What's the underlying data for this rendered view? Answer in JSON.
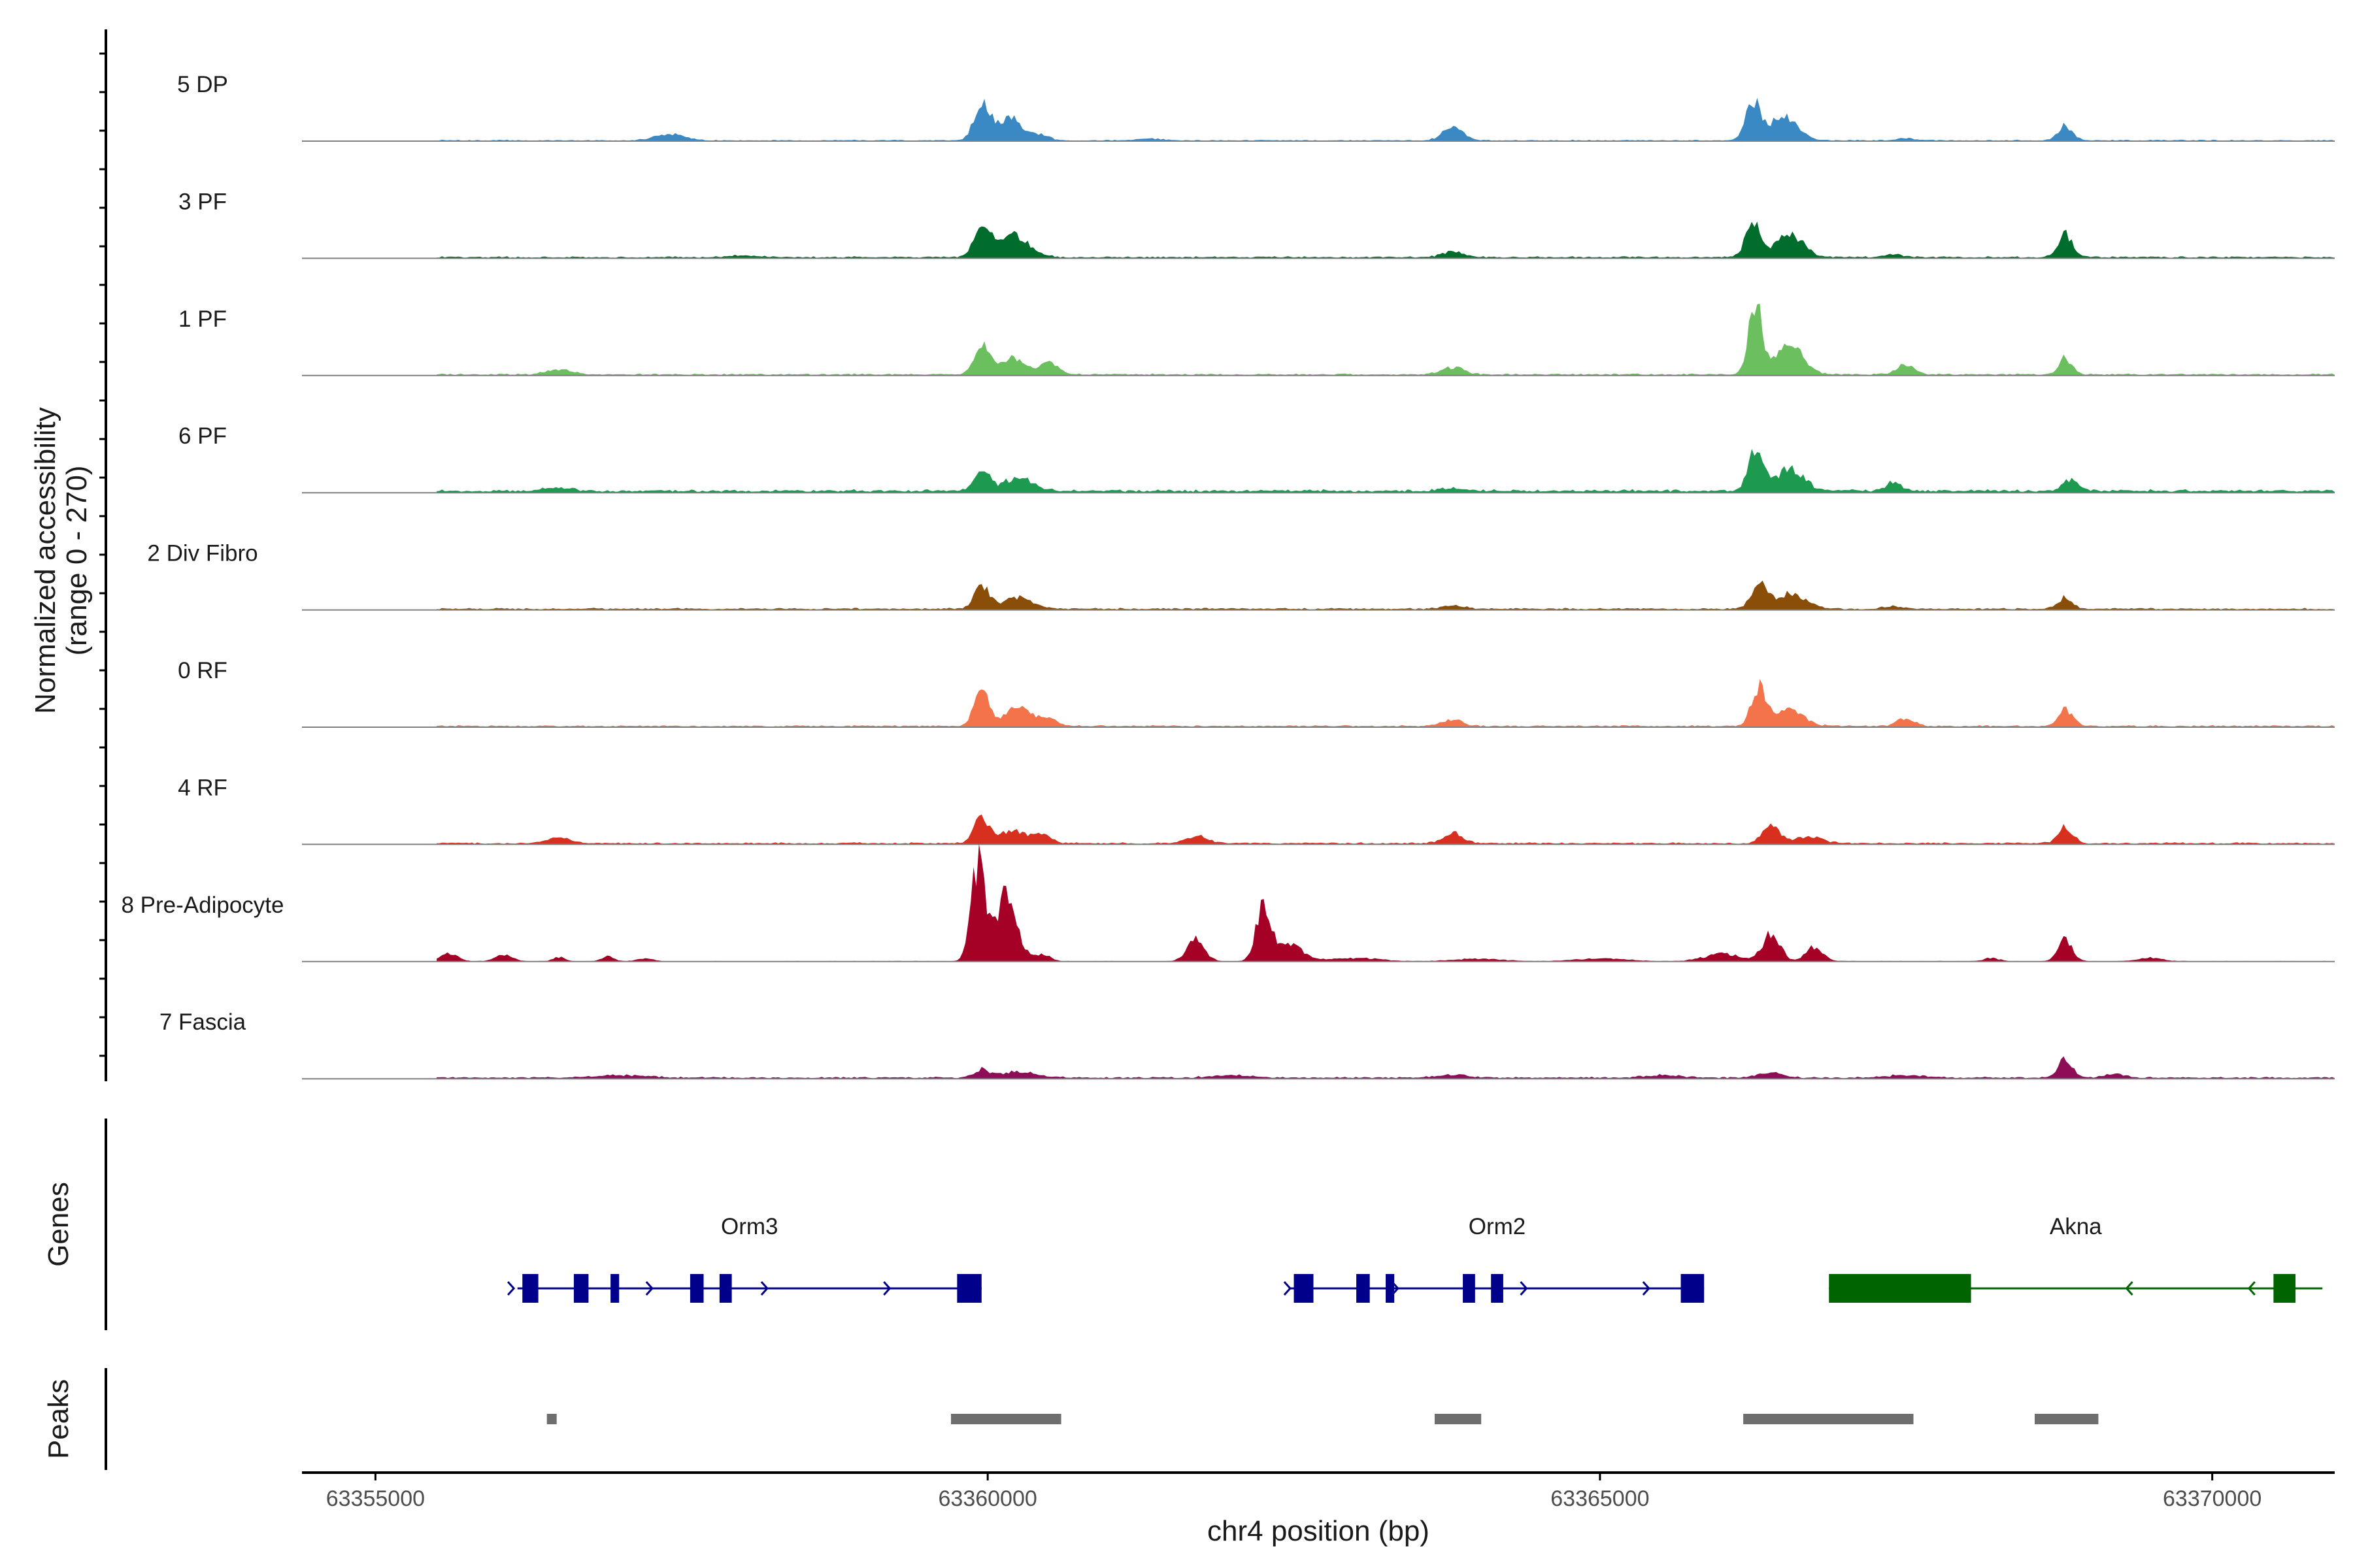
{
  "chart_data": {
    "type": "area",
    "ylabel_line1": "Normalized accessibility",
    "ylabel_line2": "(range 0 - 270)",
    "ylim": [
      0,
      270
    ],
    "genes_label": "Genes",
    "peaks_label": "Peaks",
    "xlabel": "chr4 position (bp)",
    "xlim": [
      63354400,
      63371000
    ],
    "x_ticks": [
      63355000,
      63360000,
      63365000,
      63370000
    ],
    "x_tick_labels": [
      "63355000",
      "63360000",
      "63365000",
      "63370000"
    ],
    "series": [
      {
        "name": "5 DP",
        "color": "#3a89c4",
        "base": 2,
        "peaks": [
          [
            63357400,
            120,
            15
          ],
          [
            63359950,
            60,
            95
          ],
          [
            63360180,
            110,
            55
          ],
          [
            63360450,
            60,
            12
          ],
          [
            63361300,
            100,
            5
          ],
          [
            63363800,
            80,
            34
          ],
          [
            63366250,
            60,
            95
          ],
          [
            63366500,
            110,
            60
          ],
          [
            63367500,
            80,
            5
          ],
          [
            63368800,
            60,
            36
          ]
        ]
      },
      {
        "name": "3 PF",
        "color": "#006d2c",
        "base": 3,
        "peaks": [
          [
            63358000,
            150,
            4
          ],
          [
            63359950,
            60,
            80
          ],
          [
            63360200,
            130,
            55
          ],
          [
            63363800,
            80,
            16
          ],
          [
            63366250,
            60,
            90
          ],
          [
            63366550,
            110,
            55
          ],
          [
            63367400,
            80,
            7
          ],
          [
            63368800,
            60,
            55
          ]
        ]
      },
      {
        "name": "1 PF",
        "color": "#6bbf5f",
        "base": 3,
        "peaks": [
          [
            63356500,
            100,
            12
          ],
          [
            63359950,
            60,
            70
          ],
          [
            63360200,
            110,
            40
          ],
          [
            63360500,
            70,
            28
          ],
          [
            63363800,
            90,
            18
          ],
          [
            63366270,
            55,
            170
          ],
          [
            63366550,
            110,
            75
          ],
          [
            63367500,
            70,
            25
          ],
          [
            63368800,
            55,
            40
          ]
        ]
      },
      {
        "name": "6 PF",
        "color": "#1d9a50",
        "base": 5,
        "peaks": [
          [
            63356500,
            120,
            8
          ],
          [
            63359950,
            60,
            50
          ],
          [
            63360250,
            120,
            32
          ],
          [
            63363800,
            90,
            8
          ],
          [
            63366270,
            60,
            100
          ],
          [
            63366550,
            110,
            55
          ],
          [
            63367400,
            60,
            22
          ],
          [
            63368850,
            60,
            28
          ]
        ]
      },
      {
        "name": "2 Div Fibro",
        "color": "#8b4e08",
        "base": 3,
        "peaks": [
          [
            63359950,
            60,
            60
          ],
          [
            63360250,
            120,
            28
          ],
          [
            63363800,
            90,
            8
          ],
          [
            63366300,
            60,
            65
          ],
          [
            63366550,
            130,
            35
          ],
          [
            63367400,
            70,
            7
          ],
          [
            63368800,
            60,
            27
          ]
        ]
      },
      {
        "name": "0 RF",
        "color": "#f3734a",
        "base": 3,
        "peaks": [
          [
            63359950,
            60,
            85
          ],
          [
            63360250,
            110,
            45
          ],
          [
            63360500,
            70,
            16
          ],
          [
            63363800,
            80,
            18
          ],
          [
            63366300,
            60,
            95
          ],
          [
            63366550,
            110,
            40
          ],
          [
            63367500,
            70,
            20
          ],
          [
            63368800,
            60,
            40
          ]
        ]
      },
      {
        "name": "4 RF",
        "color": "#d7301f",
        "base": 3,
        "peaks": [
          [
            63356500,
            100,
            15
          ],
          [
            63359950,
            60,
            62
          ],
          [
            63360200,
            110,
            32
          ],
          [
            63360450,
            70,
            18
          ],
          [
            63361700,
            90,
            18
          ],
          [
            63363800,
            80,
            25
          ],
          [
            63366400,
            70,
            40
          ],
          [
            63366700,
            110,
            16
          ],
          [
            63368800,
            60,
            38
          ]
        ]
      },
      {
        "name": "8 Pre-Adipocyte",
        "color": "#a50026",
        "base": 1,
        "peaks": [
          [
            63355600,
            70,
            20
          ],
          [
            63356050,
            70,
            15
          ],
          [
            63356500,
            50,
            10
          ],
          [
            63356900,
            50,
            12
          ],
          [
            63357200,
            60,
            8
          ],
          [
            63359920,
            55,
            240
          ],
          [
            63360150,
            90,
            160
          ],
          [
            63360450,
            60,
            18
          ],
          [
            63361700,
            70,
            55
          ],
          [
            63362250,
            60,
            130
          ],
          [
            63362450,
            110,
            45
          ],
          [
            63363000,
            200,
            8
          ],
          [
            63364000,
            200,
            6
          ],
          [
            63365000,
            200,
            7
          ],
          [
            63366000,
            150,
            18
          ],
          [
            63366400,
            70,
            70
          ],
          [
            63366750,
            70,
            35
          ],
          [
            63368200,
            60,
            8
          ],
          [
            63368800,
            60,
            52
          ],
          [
            63369500,
            100,
            8
          ]
        ]
      },
      {
        "name": "7 Fascia",
        "color": "#8d0d57",
        "base": 3,
        "peaks": [
          [
            63357000,
            200,
            6
          ],
          [
            63359950,
            60,
            20
          ],
          [
            63360250,
            150,
            15
          ],
          [
            63362000,
            150,
            7
          ],
          [
            63363800,
            120,
            8
          ],
          [
            63365500,
            150,
            6
          ],
          [
            63366400,
            100,
            14
          ],
          [
            63367500,
            150,
            6
          ],
          [
            63368800,
            60,
            45
          ],
          [
            63369200,
            80,
            10
          ]
        ]
      }
    ],
    "genes": [
      {
        "name": "Orm3",
        "color": "#00008b",
        "start": 63356160,
        "end": 63359950,
        "strand": "+",
        "exons": [
          [
            63356200,
            63356330
          ],
          [
            63356620,
            63356740
          ],
          [
            63356920,
            63356990
          ],
          [
            63357570,
            63357680
          ],
          [
            63357810,
            63357910
          ],
          [
            63359750,
            63359950
          ]
        ],
        "arrows": [
          63356130,
          63357260,
          63358200,
          63359200
        ]
      },
      {
        "name": "Orm2",
        "color": "#00008b",
        "start": 63362470,
        "end": 63365850,
        "strand": "+",
        "exons": [
          [
            63362500,
            63362660
          ],
          [
            63363010,
            63363120
          ],
          [
            63363250,
            63363320
          ],
          [
            63363880,
            63363980
          ],
          [
            63364110,
            63364210
          ],
          [
            63365660,
            63365850
          ]
        ],
        "arrows": [
          63362470,
          63363350,
          63364400,
          63365400
        ]
      },
      {
        "name": "Akna",
        "color": "#006400",
        "start": 63366870,
        "end": 63370900,
        "strand": "-",
        "exons": [
          [
            63366870,
            63368030
          ],
          [
            63370500,
            63370680
          ]
        ],
        "arrows": [
          63369300,
          63370300
        ]
      }
    ],
    "peaks_track": [
      [
        63356400,
        63356480
      ],
      [
        63359700,
        63360600
      ],
      [
        63363650,
        63364030
      ],
      [
        63366170,
        63367560
      ],
      [
        63368550,
        63369070
      ]
    ]
  }
}
